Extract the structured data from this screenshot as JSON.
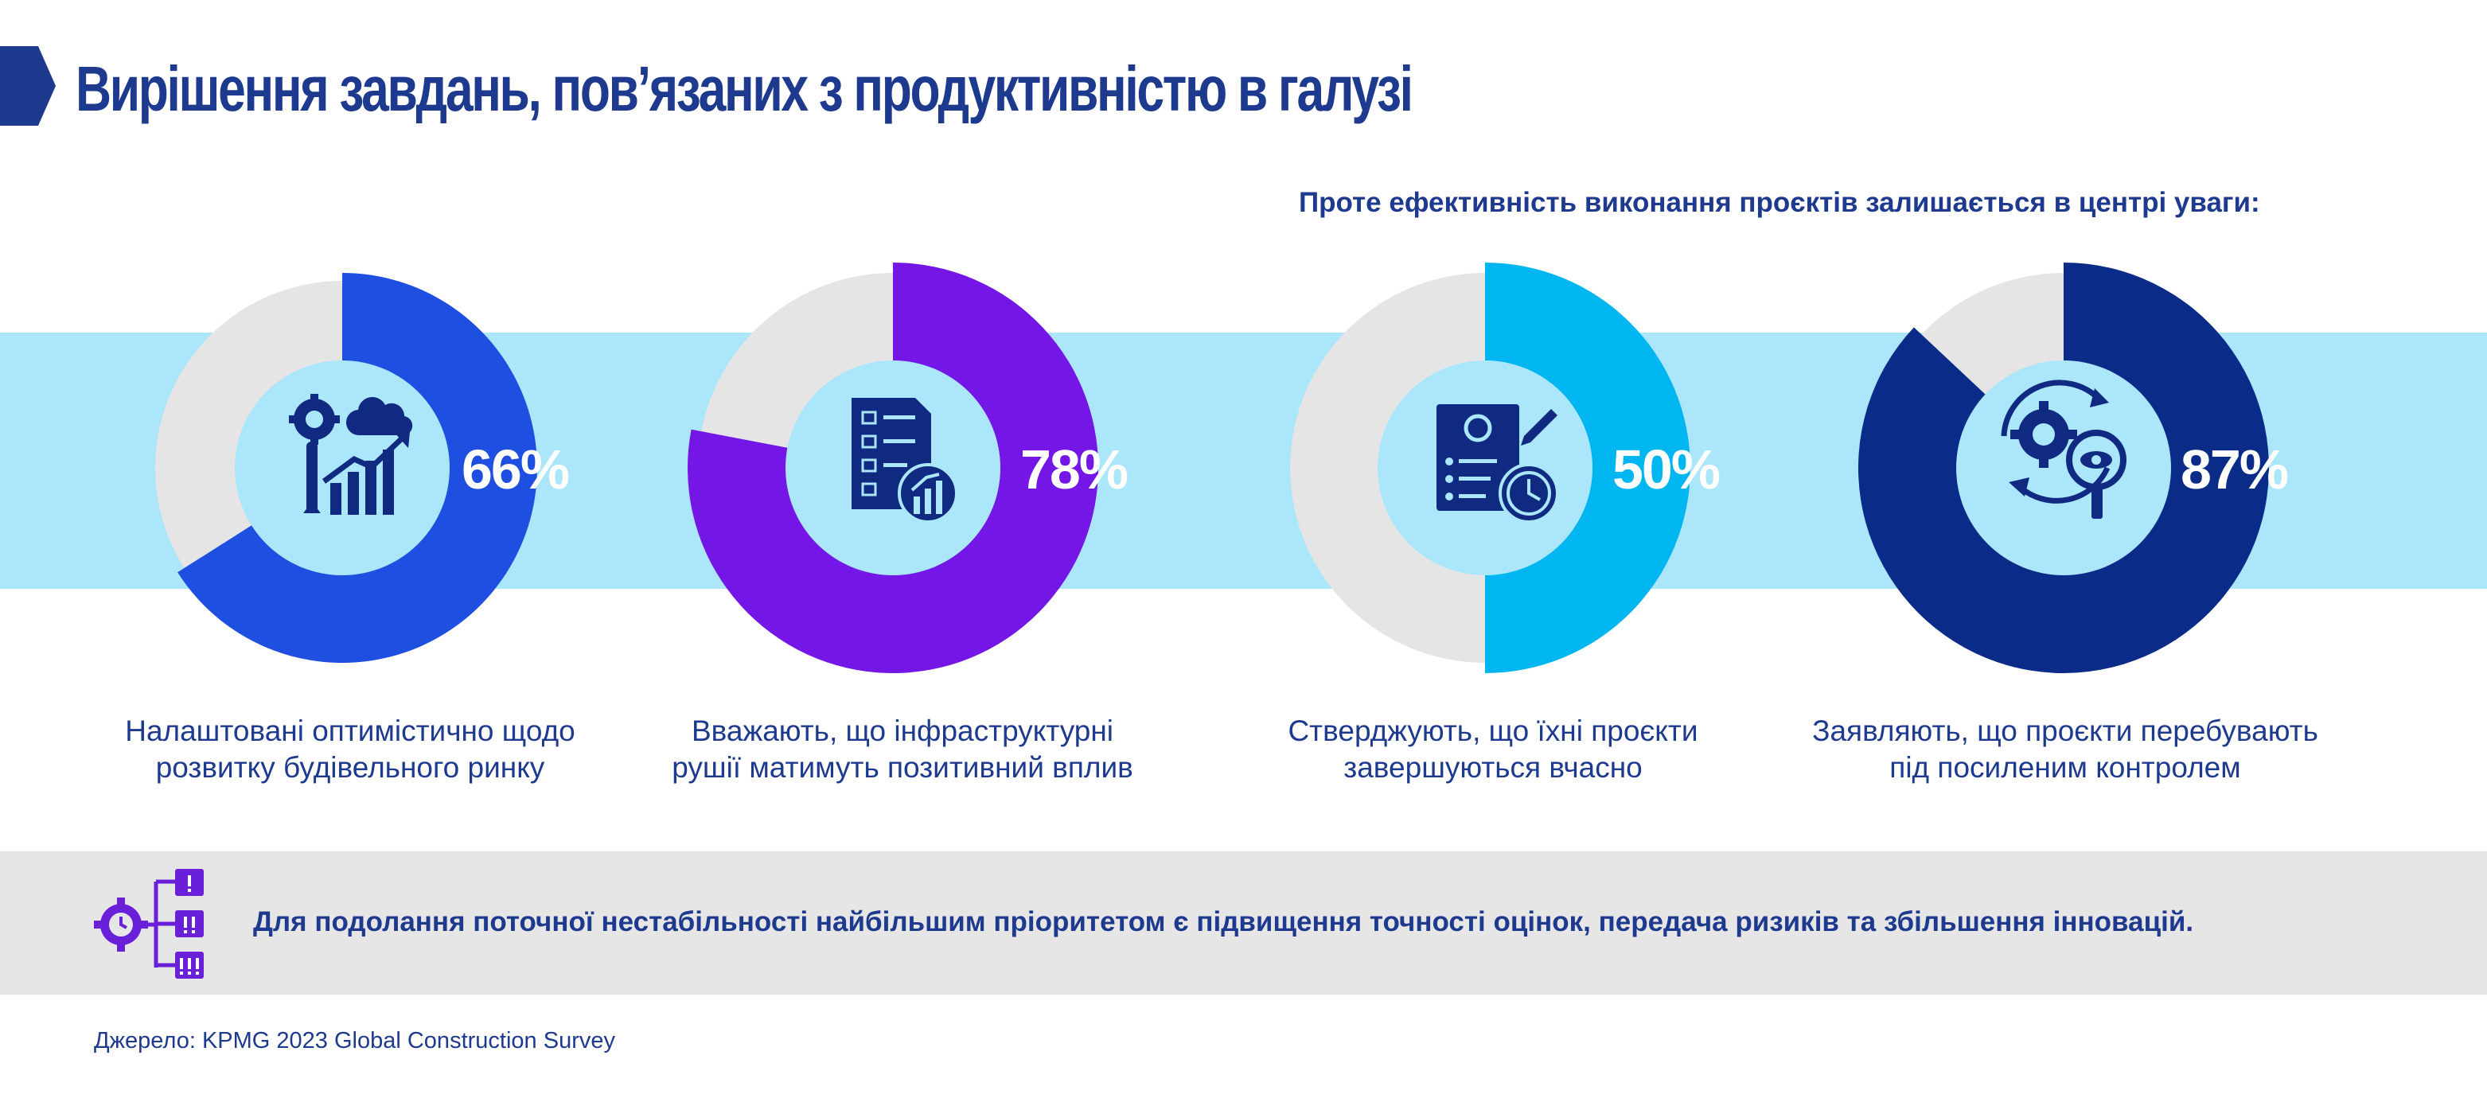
{
  "header": {
    "title": "Вирішення завдань, пов’язаних з продуктивністю в галузі",
    "subtitle": "Проте ефективність виконання проєктів залишається в центрі уваги:"
  },
  "chart_data": [
    {
      "type": "pie",
      "values": [
        66,
        34
      ],
      "percent_label": "66%",
      "caption": [
        "Налаштовані оптимістично щодо",
        "розвитку будівельного ринку"
      ],
      "color": "#1f4fe0",
      "icon": "gear-wrench-chart-icon"
    },
    {
      "type": "pie",
      "values": [
        78,
        22
      ],
      "percent_label": "78%",
      "caption": [
        "Вважають, що інфраструктурні",
        "рушії матимуть позитивний вплив"
      ],
      "color": "#7417e6",
      "icon": "checklist-report-icon"
    },
    {
      "type": "pie",
      "values": [
        50,
        50
      ],
      "percent_label": "50%",
      "caption": [
        "Стверджують, що їхні проєкти",
        "завершуються вчасно"
      ],
      "color": "#00b6f0",
      "icon": "document-clock-icon"
    },
    {
      "type": "pie",
      "values": [
        87,
        13
      ],
      "percent_label": "87%",
      "caption": [
        "Заявляють, що проєкти перебувають",
        "під посиленим контролем"
      ],
      "color": "#0a2c88",
      "icon": "gear-eye-monitoring-icon"
    }
  ],
  "colors": {
    "remainder": "#e5e5e5",
    "band": "#abe6fb",
    "text": "#1e3a8f"
  },
  "footer": {
    "note": "Для подолання поточної нестабільності найбільшим пріоритетом є підвищення точності оцінок, передача ризиків та збільшення інновацій.",
    "note_icon": "gear-priority-list-icon",
    "source": "Джерело: KPMG 2023 Global Construction Survey"
  }
}
